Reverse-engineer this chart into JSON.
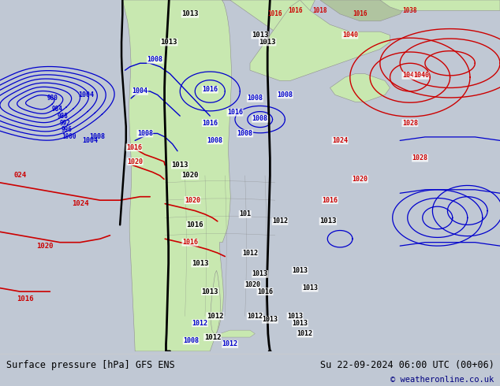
{
  "title_left": "Surface pressure [hPa] GFS ENS",
  "title_right": "Su 22-09-2024 06:00 UTC (00+06)",
  "copyright": "© weatheronline.co.uk",
  "ocean_color": "#d4dce8",
  "land_color": "#c8e8b0",
  "land_color2": "#b8c8a0",
  "fig_width": 6.34,
  "fig_height": 4.9,
  "dpi": 100,
  "blue_color": "#0000cc",
  "red_color": "#cc0000",
  "black_color": "#000000"
}
